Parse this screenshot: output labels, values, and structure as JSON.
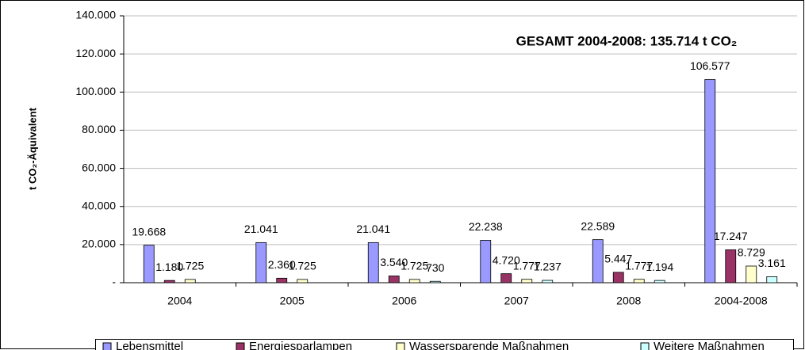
{
  "chart_data": {
    "type": "bar",
    "annotation": "GESAMT 2004-2008: 135.714 t CO₂",
    "y_label": "t CO₂-Äquivalent",
    "categories": [
      "2004",
      "2005",
      "2006",
      "2007",
      "2008",
      "2004-2008"
    ],
    "series": [
      {
        "name": "Lebensmittel",
        "color": "#9999ff",
        "values": [
          19668,
          21041,
          21041,
          22238,
          22589,
          106577
        ],
        "value_labels": [
          "19.668",
          "21.041",
          "21.041",
          "22.238",
          "22.589",
          "106.577"
        ]
      },
      {
        "name": "Energiesparlampen",
        "color": "#993366",
        "values": [
          1180,
          2360,
          3540,
          4720,
          5447,
          17247
        ],
        "value_labels": [
          "1.180",
          "2.360",
          "3.540",
          "4.720",
          "5.447",
          "17.247"
        ]
      },
      {
        "name": "Wassersparende Maßnahmen",
        "color": "#ffffcc",
        "values": [
          1725,
          1725,
          1725,
          1777,
          1777,
          8729
        ],
        "value_labels": [
          "1.725",
          "1.725",
          "1.725",
          "1.777",
          "1.777",
          "8.729"
        ]
      },
      {
        "name": "Weitere Maßnahmen",
        "color": "#ccffff",
        "values": [
          null,
          null,
          730,
          1237,
          1194,
          3161
        ],
        "value_labels": [
          null,
          null,
          "730",
          "1.237",
          "1.194",
          "3.161"
        ]
      }
    ],
    "ylim": [
      0,
      140000
    ],
    "yticks": [
      {
        "value": 0,
        "label": "-"
      },
      {
        "value": 20000,
        "label": "20.000"
      },
      {
        "value": 40000,
        "label": "40.000"
      },
      {
        "value": 60000,
        "label": "60.000"
      },
      {
        "value": 80000,
        "label": "80.000"
      },
      {
        "value": 100000,
        "label": "100.000"
      },
      {
        "value": 120000,
        "label": "120.000"
      },
      {
        "value": 140000,
        "label": "140.000"
      }
    ],
    "grid": true,
    "legend": "bottom"
  }
}
